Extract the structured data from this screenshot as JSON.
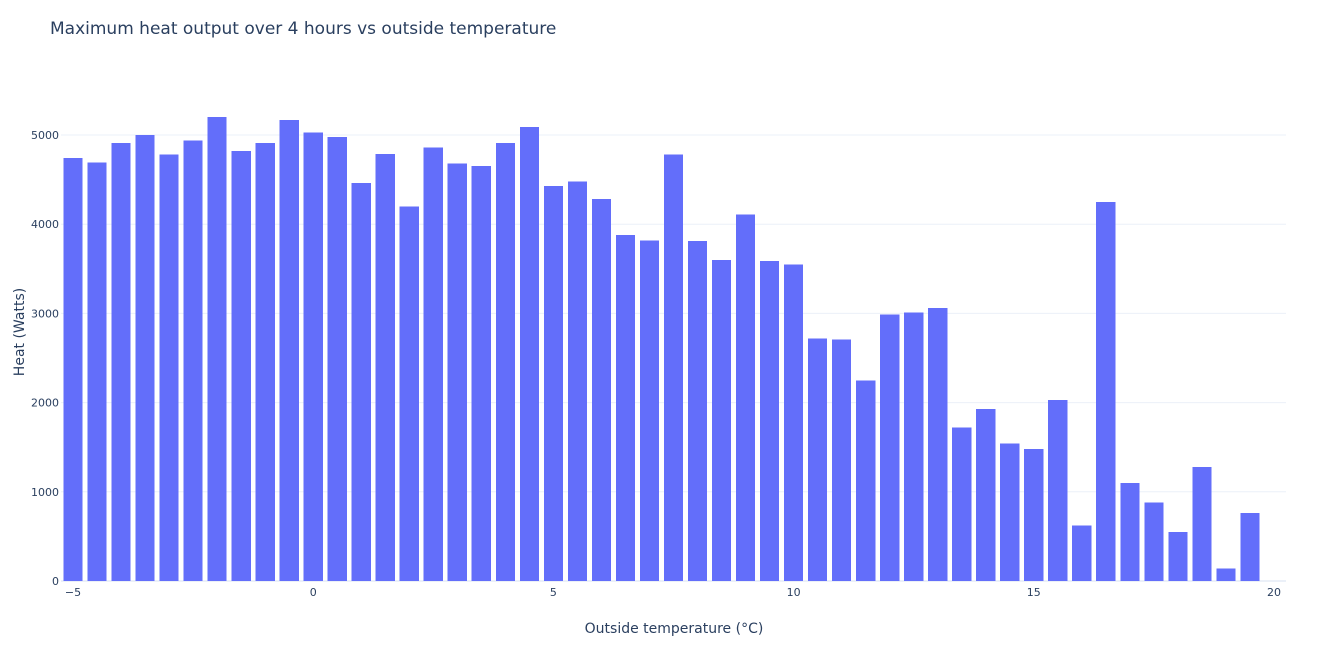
{
  "chart_data": {
    "type": "bar",
    "title": "Maximum heat output over 4 hours vs outside temperature",
    "xlabel": "Outside temperature (°C)",
    "ylabel": "Heat (Watts)",
    "xlim": [
      -5.25,
      20.25
    ],
    "ylim": [
      0,
      5460
    ],
    "x_ticks": [
      -5,
      0,
      5,
      10,
      15,
      20
    ],
    "x_tick_labels": [
      "−5",
      "0",
      "5",
      "10",
      "15",
      "20"
    ],
    "y_ticks": [
      0,
      1000,
      2000,
      3000,
      4000,
      5000
    ],
    "y_tick_labels": [
      "0",
      "1000",
      "2000",
      "3000",
      "4000",
      "5000"
    ],
    "bar_width": 0.4,
    "grid": true,
    "color": "#636efa",
    "x": [
      -5,
      -4.5,
      -4,
      -3.5,
      -3,
      -2.5,
      -2,
      -1.5,
      -1,
      -0.5,
      0,
      0.5,
      1,
      1.5,
      2,
      2.5,
      3,
      3.5,
      4,
      4.5,
      5,
      5.5,
      6,
      6.5,
      7,
      7.5,
      8,
      8.5,
      9,
      9.5,
      10,
      10.5,
      11,
      11.5,
      12,
      12.5,
      13,
      13.5,
      14,
      14.5,
      15,
      15.5,
      16,
      16.5,
      17,
      17.5,
      18,
      18.5,
      19,
      19.5
    ],
    "values": [
      4740,
      4690,
      4910,
      5000,
      4780,
      4940,
      5200,
      4820,
      4910,
      5170,
      5030,
      4980,
      4460,
      4790,
      4200,
      4860,
      4680,
      4650,
      4910,
      5090,
      4430,
      4480,
      4280,
      3880,
      3820,
      4780,
      3810,
      3600,
      4110,
      3590,
      3550,
      2720,
      2710,
      2250,
      2990,
      3010,
      3060,
      1720,
      1930,
      1540,
      1480,
      2030,
      620,
      4250,
      1100,
      880,
      550,
      1280,
      140,
      760
    ]
  }
}
